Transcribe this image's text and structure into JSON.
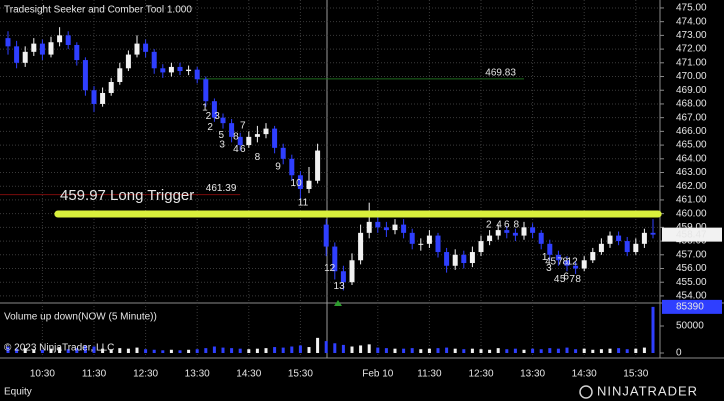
{
  "chart_data": {
    "type": "candlestick",
    "title": "Tradesight Seeker and Comber Tool 1.000",
    "up_color": "#f2f2f2",
    "down_color": "#2f3fff",
    "open": [
      472.8,
      472.2,
      471.0,
      471.8,
      472.4,
      471.6,
      472.5,
      473.0,
      472.3,
      471.2,
      469.0,
      468.0,
      468.8,
      469.6,
      470.6,
      471.6,
      472.4,
      471.8,
      470.6,
      470.3,
      470.7,
      470.4,
      470.5,
      469.8,
      468.2,
      467.0,
      466.6,
      465.6,
      465.0,
      465.6,
      465.8,
      466.2,
      464.8,
      464.0,
      462.8,
      461.8,
      462.4,
      459.2,
      457.6,
      455.8,
      455.0,
      456.6,
      458.6,
      459.4,
      459.0,
      458.8,
      459.2,
      458.6,
      457.8,
      457.8,
      458.4,
      457.2,
      456.2,
      457.0,
      456.4,
      457.2,
      458.0,
      458.4,
      458.8,
      458.6,
      458.4,
      459.0,
      458.6,
      457.8,
      457.0,
      456.6,
      456.2,
      456.0,
      456.6,
      457.2,
      457.8,
      458.4,
      458.0,
      457.2,
      457.8,
      458.6
    ],
    "high": [
      473.3,
      472.6,
      472.2,
      472.8,
      472.7,
      472.9,
      473.6,
      473.3,
      472.5,
      471.4,
      469.3,
      469.2,
      469.9,
      471.0,
      471.9,
      473.0,
      472.7,
      472.0,
      470.9,
      471.0,
      471.0,
      470.8,
      470.7,
      470.0,
      468.4,
      467.3,
      466.9,
      465.9,
      466.0,
      466.4,
      466.6,
      466.4,
      465.1,
      464.3,
      463.1,
      463.4,
      465.1,
      459.6,
      457.9,
      456.2,
      457.1,
      459.2,
      460.8,
      459.8,
      459.4,
      459.6,
      459.6,
      458.9,
      458.2,
      458.8,
      458.6,
      457.5,
      457.4,
      457.3,
      457.6,
      458.4,
      458.8,
      459.2,
      459.1,
      458.9,
      459.4,
      459.3,
      458.8,
      458.1,
      457.3,
      456.9,
      456.5,
      456.9,
      457.5,
      458.2,
      458.7,
      458.7,
      458.3,
      458.2,
      458.9,
      459.6
    ],
    "low": [
      471.6,
      470.6,
      470.7,
      471.5,
      471.2,
      471.4,
      472.2,
      472.0,
      470.8,
      468.6,
      467.4,
      467.8,
      468.6,
      469.4,
      470.4,
      471.4,
      471.4,
      470.2,
      469.9,
      470.0,
      470.1,
      470.1,
      469.5,
      467.8,
      466.7,
      466.2,
      465.2,
      464.6,
      464.8,
      465.2,
      465.5,
      464.4,
      463.6,
      462.4,
      461.0,
      461.5,
      462.2,
      456.9,
      455.2,
      454.4,
      454.8,
      456.3,
      458.2,
      458.6,
      458.3,
      458.5,
      458.2,
      457.4,
      457.3,
      457.5,
      456.8,
      455.7,
      455.9,
      456.0,
      456.1,
      456.9,
      457.7,
      458.1,
      458.2,
      458.0,
      458.1,
      458.2,
      457.4,
      456.6,
      456.2,
      455.8,
      455.6,
      455.8,
      456.4,
      457.0,
      457.5,
      457.7,
      456.9,
      457.0,
      457.5,
      458.2
    ],
    "close": [
      472.2,
      471.0,
      471.8,
      472.4,
      471.6,
      472.5,
      473.0,
      472.3,
      471.2,
      469.0,
      468.0,
      468.8,
      469.6,
      470.6,
      471.6,
      472.4,
      471.8,
      470.6,
      470.3,
      470.7,
      470.4,
      470.5,
      469.8,
      468.2,
      467.0,
      466.6,
      465.6,
      465.0,
      465.6,
      465.8,
      466.2,
      464.8,
      464.0,
      462.8,
      461.8,
      462.4,
      464.6,
      457.6,
      455.8,
      455.0,
      456.6,
      458.6,
      459.4,
      459.0,
      458.8,
      459.2,
      458.6,
      457.8,
      457.8,
      458.4,
      457.2,
      456.2,
      457.0,
      456.4,
      457.2,
      458.0,
      458.4,
      458.8,
      458.6,
      458.4,
      459.0,
      458.6,
      457.8,
      457.0,
      456.6,
      456.2,
      456.0,
      456.6,
      457.2,
      457.8,
      458.4,
      458.0,
      457.2,
      457.8,
      458.6,
      458.47
    ],
    "xticks": [
      {
        "value": 4,
        "label": "10:30"
      },
      {
        "value": 10,
        "label": "11:30"
      },
      {
        "value": 16,
        "label": "12:30"
      },
      {
        "value": 22,
        "label": "13:30"
      },
      {
        "value": 28,
        "label": "14:30"
      },
      {
        "value": 34,
        "label": "15:30"
      },
      {
        "value": 43,
        "label": "Feb 10"
      },
      {
        "value": 49,
        "label": "11:30"
      },
      {
        "value": 55,
        "label": "12:30"
      },
      {
        "value": 61,
        "label": "13:30"
      },
      {
        "value": 67,
        "label": "14:30"
      },
      {
        "value": 73,
        "label": "15:30"
      }
    ],
    "ylim": [
      453.63,
      475.58
    ],
    "yticks": [
      {
        "value": 454,
        "label": "454.00"
      },
      {
        "value": 455,
        "label": "455.00"
      },
      {
        "value": 456,
        "label": "456.00"
      },
      {
        "value": 457,
        "label": "457.00"
      },
      {
        "value": 458,
        "label": "458.00"
      },
      {
        "value": 459,
        "label": "459.00"
      },
      {
        "value": 460,
        "label": "460.00"
      },
      {
        "value": 461,
        "label": "461.00"
      },
      {
        "value": 462,
        "label": "462.00"
      },
      {
        "value": 463,
        "label": "463.00"
      },
      {
        "value": 464,
        "label": "464.00"
      },
      {
        "value": 465,
        "label": "465.00"
      },
      {
        "value": 466,
        "label": "466.00"
      },
      {
        "value": 467,
        "label": "467.00"
      },
      {
        "value": 468,
        "label": "468.00"
      },
      {
        "value": 469,
        "label": "469.00"
      },
      {
        "value": 470,
        "label": "470.00"
      },
      {
        "value": 471,
        "label": "471.00"
      },
      {
        "value": 472,
        "label": "472.00"
      },
      {
        "value": 473,
        "label": "473.00"
      },
      {
        "value": 474,
        "label": "474.00"
      },
      {
        "value": 475,
        "label": "475.00"
      }
    ],
    "grid": true,
    "last_price": 458.47,
    "levels": [
      {
        "value": 469.83,
        "color": "#1e6b1e",
        "text_color": "#2fa32f",
        "from": 22,
        "to": 60,
        "label_at": 55.5
      },
      {
        "value": 461.39,
        "color": "#7a0b0b",
        "text_color": "#e01c1c",
        "from": -1,
        "to": 27,
        "label_at": 23
      }
    ],
    "trigger": {
      "label": "459.97 Long Trigger",
      "value": 459.97,
      "color": "#d9f03c",
      "from": 5.8,
      "to": 75.6
    },
    "counts": [
      {
        "label": "1",
        "x": 22.9,
        "y": 467.7,
        "color": "#e21de2"
      },
      {
        "label": "2",
        "x": 23.5,
        "y": 466.3,
        "color": "#e21de2"
      },
      {
        "label": "3",
        "x": 24.9,
        "y": 465.0,
        "color": "#e21de2"
      },
      {
        "label": "4",
        "x": 26.5,
        "y": 464.7,
        "color": "#e21de2"
      },
      {
        "label": "6",
        "x": 27.3,
        "y": 464.7,
        "color": "#e21de2"
      },
      {
        "label": "8",
        "x": 29.0,
        "y": 464.1,
        "color": "#e21de2"
      },
      {
        "label": "9",
        "x": 31.4,
        "y": 463.4,
        "color": "#e21de2"
      },
      {
        "label": "10",
        "x": 33.5,
        "y": 462.2,
        "color": "#e21de2"
      },
      {
        "label": "11",
        "x": 34.3,
        "y": 460.8,
        "color": "#e21de2"
      },
      {
        "label": "12",
        "x": 37.4,
        "y": 456.0,
        "color": "#e21de2"
      },
      {
        "label": "13",
        "x": 38.5,
        "y": 454.7,
        "color": "#e21de2"
      },
      {
        "label": "2",
        "x": 23.3,
        "y": 467.1,
        "color": "#2e9e2e"
      },
      {
        "label": "3",
        "x": 24.3,
        "y": 467.1,
        "color": "#2e9e2e"
      },
      {
        "label": "5",
        "x": 24.8,
        "y": 465.7,
        "color": "#2e9e2e"
      },
      {
        "label": "8",
        "x": 26.5,
        "y": 465.6,
        "color": "#2e9e2e"
      },
      {
        "label": "7",
        "x": 27.3,
        "y": 466.4,
        "color": "#2e9e2e"
      },
      {
        "label": "2",
        "x": 55.9,
        "y": 459.2,
        "color": "#2e9e2e"
      },
      {
        "label": "4",
        "x": 57.1,
        "y": 459.2,
        "color": "#2e9e2e"
      },
      {
        "label": "6",
        "x": 58.0,
        "y": 459.2,
        "color": "#2e9e2e"
      },
      {
        "label": "8",
        "x": 59.1,
        "y": 459.2,
        "color": "#2e9e2e"
      },
      {
        "label": "1",
        "x": 62.4,
        "y": 456.8,
        "color": "#2e9e2e"
      },
      {
        "label": "3",
        "x": 62.9,
        "y": 456.0,
        "color": "#2e9e2e"
      },
      {
        "label": "4",
        "x": 63.8,
        "y": 455.2,
        "color": "#2e9e2e"
      },
      {
        "label": "5",
        "x": 64.5,
        "y": 455.2,
        "color": "#2e9e2e"
      },
      {
        "label": "6",
        "x": 64.9,
        "y": 455.4,
        "color": "#2e9e2e"
      },
      {
        "label": "7",
        "x": 65.6,
        "y": 455.2,
        "color": "#2e9e2e"
      },
      {
        "label": "8",
        "x": 66.3,
        "y": 455.2,
        "color": "#2e9e2e"
      },
      {
        "label": "4",
        "x": 62.8,
        "y": 456.5,
        "color": "#e21de2"
      },
      {
        "label": "5",
        "x": 63.4,
        "y": 456.5,
        "color": "#e21de2"
      },
      {
        "label": "7",
        "x": 64.2,
        "y": 456.5,
        "color": "#e21de2"
      },
      {
        "label": "8",
        "x": 64.8,
        "y": 456.5,
        "color": "#e21de2"
      },
      {
        "label": "12",
        "x": 65.6,
        "y": 456.5,
        "color": "#e21de2"
      }
    ],
    "volume": {
      "title": "Volume up down(NOW (5 Minute))",
      "values": [
        12000,
        8000,
        9000,
        7000,
        6000,
        8000,
        10000,
        7000,
        9000,
        14000,
        12000,
        8000,
        7000,
        9000,
        8000,
        10000,
        7000,
        6000,
        5000,
        6000,
        5000,
        6000,
        7000,
        9000,
        12000,
        10000,
        9000,
        8000,
        7000,
        8000,
        9000,
        11000,
        10000,
        12000,
        14000,
        11000,
        28000,
        22000,
        18000,
        15000,
        12000,
        14000,
        16000,
        10000,
        9000,
        8000,
        8000,
        9000,
        7000,
        8000,
        9000,
        10000,
        8000,
        7000,
        8000,
        7000,
        6000,
        9000,
        7000,
        8000,
        6000,
        8000,
        7000,
        9000,
        8000,
        10000,
        7000,
        8000,
        6000,
        7000,
        8000,
        9000,
        7000,
        8000,
        10000,
        85390
      ],
      "ylim": [
        0,
        87000
      ],
      "yticks": [
        0,
        50000
      ],
      "last": 85390
    },
    "copyright": "© 2023 NinjaTrader, LLC",
    "instrument": "Equity",
    "brand": "NINJATRADER"
  }
}
